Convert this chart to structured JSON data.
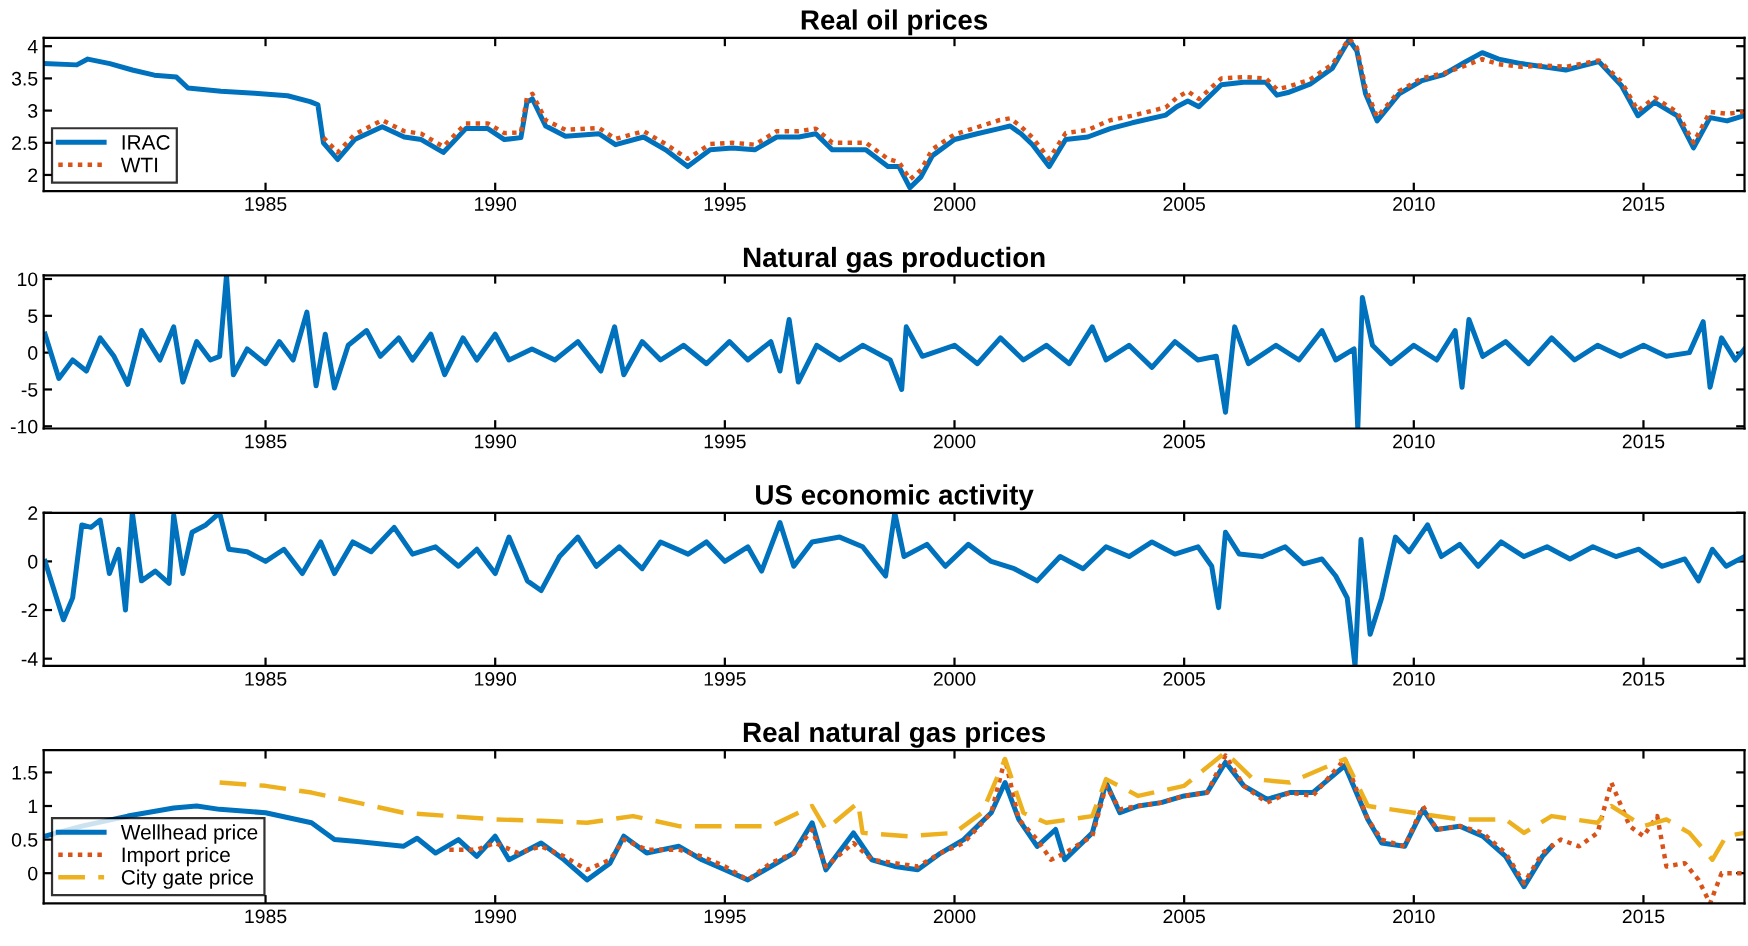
{
  "chart_data": [
    {
      "type": "line",
      "title": "Real oil prices",
      "xlim": [
        1980.17,
        2017.2
      ],
      "xticks": [
        1985,
        1990,
        1995,
        2000,
        2005,
        2010,
        2015
      ],
      "ylim": [
        1.75,
        4.13
      ],
      "yticks": [
        2,
        2.5,
        3,
        3.5,
        4
      ],
      "legend": "lower left",
      "series": [
        {
          "name": "IRAC",
          "color": "#0072bd",
          "line_style": "solid",
          "x": [
            1980.17,
            1980.89,
            1981.13,
            1981.61,
            1982.1,
            1982.58,
            1983.06,
            1983.31,
            1984.03,
            1984.76,
            1985.48,
            1985.97,
            1986.14,
            1986.26,
            1986.57,
            1986.94,
            1987.54,
            1988.02,
            1988.39,
            1988.87,
            1989.36,
            1989.84,
            1990.2,
            1990.56,
            1990.69,
            1990.81,
            1991.1,
            1991.53,
            1992.26,
            1992.62,
            1993.23,
            1993.71,
            1994.19,
            1994.68,
            1995.16,
            1995.65,
            1996.13,
            1996.61,
            1996.98,
            1997.34,
            1998.07,
            1998.55,
            1998.79,
            1999.03,
            1999.27,
            1999.52,
            2000.0,
            2000.49,
            2000.97,
            2001.21,
            2001.45,
            2001.7,
            2002.06,
            2002.42,
            2002.9,
            2003.39,
            2003.87,
            2004.6,
            2004.84,
            2005.08,
            2005.32,
            2005.81,
            2006.29,
            2006.78,
            2007.02,
            2007.26,
            2007.74,
            2008.23,
            2008.59,
            2008.76,
            2008.95,
            2009.2,
            2009.68,
            2010.16,
            2010.65,
            2011.13,
            2011.49,
            2011.85,
            2012.34,
            2012.82,
            2013.31,
            2014.03,
            2014.52,
            2014.88,
            2015.24,
            2015.73,
            2016.09,
            2016.45,
            2016.82,
            2017.18
          ],
          "values": [
            3.73,
            3.71,
            3.8,
            3.73,
            3.63,
            3.55,
            3.52,
            3.35,
            3.3,
            3.27,
            3.23,
            3.14,
            3.09,
            2.5,
            2.24,
            2.55,
            2.75,
            2.59,
            2.55,
            2.35,
            2.72,
            2.72,
            2.55,
            2.58,
            3.13,
            3.18,
            2.76,
            2.6,
            2.64,
            2.47,
            2.59,
            2.39,
            2.13,
            2.39,
            2.42,
            2.39,
            2.59,
            2.59,
            2.64,
            2.39,
            2.39,
            2.13,
            2.13,
            1.8,
            1.97,
            2.3,
            2.55,
            2.64,
            2.72,
            2.76,
            2.64,
            2.47,
            2.13,
            2.55,
            2.59,
            2.72,
            2.81,
            2.93,
            3.06,
            3.15,
            3.06,
            3.4,
            3.44,
            3.44,
            3.24,
            3.28,
            3.41,
            3.66,
            4.1,
            3.93,
            3.26,
            2.84,
            3.26,
            3.46,
            3.56,
            3.76,
            3.9,
            3.8,
            3.73,
            3.68,
            3.63,
            3.76,
            3.39,
            2.92,
            3.13,
            2.92,
            2.42,
            2.89,
            2.84,
            2.92
          ]
        },
        {
          "name": "WTI",
          "color": "#d95319",
          "line_style": "dotted",
          "x": [
            1986.26,
            1986.57,
            1986.94,
            1987.54,
            1988.02,
            1988.39,
            1988.87,
            1989.36,
            1989.84,
            1990.2,
            1990.56,
            1990.69,
            1990.81,
            1991.1,
            1991.53,
            1992.26,
            1992.62,
            1993.23,
            1993.71,
            1994.19,
            1994.68,
            1995.16,
            1995.65,
            1996.13,
            1996.61,
            1996.98,
            1997.34,
            1998.07,
            1998.55,
            1998.79,
            1999.03,
            1999.27,
            1999.52,
            2000.0,
            2000.49,
            2000.97,
            2001.21,
            2001.45,
            2001.7,
            2002.06,
            2002.42,
            2002.9,
            2003.39,
            2003.87,
            2004.6,
            2004.84,
            2005.08,
            2005.32,
            2005.81,
            2006.29,
            2006.78,
            2007.02,
            2007.26,
            2007.74,
            2008.23,
            2008.59,
            2008.76,
            2008.95,
            2009.2,
            2009.68,
            2010.16,
            2010.65,
            2011.13,
            2011.49,
            2011.85,
            2012.34,
            2012.82,
            2013.31,
            2014.03,
            2014.52,
            2014.88,
            2015.24,
            2015.73,
            2016.09,
            2016.45,
            2016.82,
            2017.18
          ],
          "values": [
            2.58,
            2.35,
            2.63,
            2.85,
            2.68,
            2.64,
            2.44,
            2.8,
            2.8,
            2.65,
            2.66,
            3.2,
            3.26,
            2.85,
            2.7,
            2.73,
            2.56,
            2.68,
            2.48,
            2.25,
            2.48,
            2.5,
            2.47,
            2.68,
            2.68,
            2.72,
            2.5,
            2.5,
            2.25,
            2.2,
            1.93,
            2.08,
            2.4,
            2.63,
            2.74,
            2.85,
            2.88,
            2.75,
            2.58,
            2.25,
            2.65,
            2.7,
            2.85,
            2.92,
            3.05,
            3.2,
            3.3,
            3.18,
            3.5,
            3.52,
            3.5,
            3.33,
            3.37,
            3.48,
            3.72,
            4.12,
            3.98,
            3.35,
            2.9,
            3.3,
            3.5,
            3.58,
            3.7,
            3.8,
            3.72,
            3.68,
            3.7,
            3.68,
            3.78,
            3.45,
            3.0,
            3.2,
            2.98,
            2.5,
            2.98,
            2.95,
            2.98
          ]
        }
      ]
    },
    {
      "type": "line",
      "title": "Natural gas production",
      "xlim": [
        1980.17,
        2017.2
      ],
      "xticks": [
        1985,
        1990,
        1995,
        2000,
        2005,
        2010,
        2015
      ],
      "ylim": [
        -10.3,
        10.5
      ],
      "yticks": [
        -10,
        -5,
        0,
        5,
        10
      ],
      "series": [
        {
          "color": "#0072bd",
          "line_style": "solid",
          "x": [
            1980.2,
            1980.5,
            1980.8,
            1981.1,
            1981.4,
            1981.7,
            1982.0,
            1982.3,
            1982.7,
            1983.0,
            1983.2,
            1983.5,
            1983.8,
            1984.0,
            1984.15,
            1984.3,
            1984.6,
            1985.0,
            1985.3,
            1985.6,
            1985.9,
            1986.1,
            1986.3,
            1986.5,
            1986.8,
            1987.2,
            1987.5,
            1987.9,
            1988.2,
            1988.6,
            1988.9,
            1989.3,
            1989.6,
            1990.0,
            1990.3,
            1990.8,
            1991.3,
            1991.8,
            1992.3,
            1992.6,
            1992.8,
            1993.2,
            1993.6,
            1994.1,
            1994.6,
            1995.1,
            1995.5,
            1996.0,
            1996.2,
            1996.4,
            1996.6,
            1997.0,
            1997.5,
            1998.0,
            1998.6,
            1998.85,
            1998.95,
            1999.3,
            2000.0,
            2000.5,
            2001.0,
            2001.5,
            2002.0,
            2002.5,
            2003.0,
            2003.3,
            2003.8,
            2004.3,
            2004.8,
            2005.3,
            2005.7,
            2005.9,
            2006.1,
            2006.4,
            2007.0,
            2007.5,
            2008.0,
            2008.3,
            2008.7,
            2008.78,
            2008.88,
            2009.1,
            2009.5,
            2010.0,
            2010.5,
            2010.9,
            2011.05,
            2011.2,
            2011.5,
            2012.0,
            2012.5,
            2013.0,
            2013.5,
            2014.0,
            2014.5,
            2015.0,
            2015.5,
            2016.0,
            2016.3,
            2016.45,
            2016.7,
            2017.0,
            2017.2
          ],
          "values": [
            2.5,
            -3.5,
            -1,
            -2.5,
            2,
            -0.5,
            -4.3,
            3,
            -1,
            3.5,
            -4,
            1.5,
            -1,
            -0.5,
            10.5,
            -3,
            0.5,
            -1.5,
            1.5,
            -1,
            5.5,
            -4.5,
            2.5,
            -4.8,
            1,
            3,
            -0.5,
            2,
            -1,
            2.5,
            -3,
            2,
            -1,
            2.5,
            -1,
            0.5,
            -1,
            1.5,
            -2.5,
            3.5,
            -3,
            1.5,
            -1,
            1,
            -1.5,
            1.5,
            -1,
            1.5,
            -2.5,
            4.5,
            -4,
            1,
            -1,
            1,
            -1,
            -5,
            3.5,
            -0.5,
            1,
            -1.5,
            2,
            -1,
            1,
            -1.5,
            3.5,
            -1,
            1,
            -2,
            1.5,
            -1,
            -0.5,
            -8.1,
            3.5,
            -1.5,
            1,
            -1,
            3,
            -1,
            0.5,
            -10.3,
            7.5,
            1,
            -1.5,
            1,
            -1,
            3,
            -4.7,
            4.5,
            -0.5,
            1.5,
            -1.5,
            2,
            -1,
            1,
            -0.5,
            1,
            -0.5,
            0,
            4.2,
            -4.7,
            2,
            -1,
            0.5
          ]
        }
      ]
    },
    {
      "type": "line",
      "title": "US economic activity",
      "xlim": [
        1980.17,
        2017.2
      ],
      "xticks": [
        1985,
        1990,
        1995,
        2000,
        2005,
        2010,
        2015
      ],
      "ylim": [
        -4.3,
        2
      ],
      "yticks": [
        -4,
        -2,
        0,
        2
      ],
      "series": [
        {
          "color": "#0072bd",
          "line_style": "solid",
          "x": [
            1980.2,
            1980.45,
            1980.6,
            1980.8,
            1981.0,
            1981.2,
            1981.4,
            1981.6,
            1981.8,
            1981.95,
            1982.1,
            1982.3,
            1982.6,
            1982.9,
            1983.0,
            1983.2,
            1983.4,
            1983.7,
            1984.0,
            1984.2,
            1984.6,
            1985.0,
            1985.4,
            1985.8,
            1986.2,
            1986.5,
            1986.9,
            1987.3,
            1987.8,
            1988.2,
            1988.7,
            1989.2,
            1989.6,
            1990.0,
            1990.3,
            1990.7,
            1991.0,
            1991.4,
            1991.8,
            1992.2,
            1992.7,
            1993.2,
            1993.6,
            1994.2,
            1994.6,
            1995.0,
            1995.5,
            1995.8,
            1996.2,
            1996.5,
            1996.9,
            1997.5,
            1998.0,
            1998.5,
            1998.7,
            1998.9,
            1999.4,
            1999.8,
            2000.3,
            2000.8,
            2001.3,
            2001.8,
            2002.3,
            2002.8,
            2003.3,
            2003.8,
            2004.3,
            2004.8,
            2005.3,
            2005.6,
            2005.75,
            2005.9,
            2006.2,
            2006.7,
            2007.2,
            2007.6,
            2008.0,
            2008.3,
            2008.55,
            2008.72,
            2008.85,
            2009.05,
            2009.3,
            2009.6,
            2009.9,
            2010.3,
            2010.6,
            2011.0,
            2011.4,
            2011.9,
            2012.4,
            2012.9,
            2013.4,
            2013.9,
            2014.4,
            2014.9,
            2015.4,
            2015.9,
            2016.2,
            2016.5,
            2016.8,
            2017.2
          ],
          "values": [
            0,
            -1.5,
            -2.4,
            -1.5,
            1.5,
            1.4,
            1.7,
            -0.5,
            0.5,
            -2,
            2,
            -0.8,
            -0.4,
            -0.9,
            1.9,
            -0.5,
            1.2,
            1.5,
            2,
            0.5,
            0.4,
            0,
            0.5,
            -0.5,
            0.8,
            -0.5,
            0.8,
            0.4,
            1.4,
            0.3,
            0.6,
            -0.2,
            0.5,
            -0.5,
            1,
            -0.8,
            -1.2,
            0.2,
            1,
            -0.2,
            0.6,
            -0.3,
            0.8,
            0.3,
            0.8,
            0,
            0.6,
            -0.4,
            1.6,
            -0.2,
            0.8,
            1,
            0.6,
            -0.6,
            2,
            0.2,
            0.7,
            -0.2,
            0.7,
            0,
            -0.3,
            -0.8,
            0.2,
            -0.3,
            0.6,
            0.2,
            0.8,
            0.3,
            0.6,
            -0.2,
            -1.9,
            1.2,
            0.3,
            0.2,
            0.6,
            -0.1,
            0.1,
            -0.6,
            -1.5,
            -4.3,
            0.9,
            -3,
            -1.5,
            1,
            0.4,
            1.5,
            0.2,
            0.7,
            -0.2,
            0.8,
            0.2,
            0.6,
            0.1,
            0.6,
            0.2,
            0.5,
            -0.2,
            0.1,
            -0.8,
            0.5,
            -0.2,
            0.2
          ]
        }
      ]
    },
    {
      "type": "line",
      "title": "Real natural gas prices",
      "xlim": [
        1980.17,
        2017.2
      ],
      "xticks": [
        1985,
        1990,
        1995,
        2000,
        2005,
        2010,
        2015
      ],
      "ylim": [
        -0.45,
        1.83
      ],
      "yticks": [
        0,
        0.5,
        1,
        1.5
      ],
      "legend": "lower left",
      "series": [
        {
          "name": "Wellhead price",
          "color": "#0072bd",
          "line_style": "solid",
          "x": [
            1980.2,
            1981,
            1982,
            1983,
            1983.5,
            1984,
            1985,
            1986,
            1986.5,
            1987,
            1988,
            1988.3,
            1988.7,
            1989.2,
            1989.6,
            1990,
            1990.3,
            1991,
            1991.5,
            1992,
            1992.5,
            1992.8,
            1993.3,
            1994,
            1994.5,
            1995,
            1995.5,
            1996,
            1996.5,
            1996.9,
            1997.2,
            1997.8,
            1998.2,
            1998.7,
            1999.2,
            1999.7,
            2000.2,
            2000.8,
            2001.1,
            2001.4,
            2001.8,
            2002.2,
            2002.4,
            2003,
            2003.3,
            2003.6,
            2004,
            2004.5,
            2005,
            2005.5,
            2005.9,
            2006.3,
            2006.8,
            2007.3,
            2007.8,
            2008.5,
            2009,
            2009.3,
            2009.8,
            2010.2,
            2010.5,
            2011,
            2011.5,
            2012,
            2012.4,
            2012.8,
            2013.0
          ],
          "values": [
            0.55,
            0.7,
            0.85,
            0.97,
            1.0,
            0.95,
            0.9,
            0.75,
            0.5,
            0.47,
            0.4,
            0.52,
            0.3,
            0.5,
            0.25,
            0.55,
            0.2,
            0.45,
            0.2,
            -0.1,
            0.15,
            0.55,
            0.3,
            0.4,
            0.2,
            0.05,
            -0.1,
            0.1,
            0.3,
            0.75,
            0.05,
            0.6,
            0.2,
            0.1,
            0.05,
            0.3,
            0.5,
            0.9,
            1.35,
            0.8,
            0.4,
            0.65,
            0.2,
            0.6,
            1.35,
            0.9,
            1.0,
            1.05,
            1.15,
            1.2,
            1.65,
            1.3,
            1.1,
            1.2,
            1.2,
            1.6,
            0.8,
            0.45,
            0.4,
            0.95,
            0.65,
            0.7,
            0.55,
            0.25,
            -0.2,
            0.25,
            0.4
          ]
        },
        {
          "name": "Import price",
          "color": "#d95319",
          "line_style": "dotted",
          "x": [
            1989.0,
            1989.6,
            1990.0,
            1990.5,
            1991.0,
            1991.5,
            1992.0,
            1992.5,
            1992.8,
            1993.3,
            1994.0,
            1994.5,
            1995.0,
            1995.5,
            1996.0,
            1996.5,
            1996.9,
            1997.2,
            1997.8,
            1998.2,
            1998.7,
            1999.2,
            1999.7,
            2000.2,
            2000.8,
            2001.1,
            2001.4,
            2001.8,
            2002.1,
            2002.4,
            2003.0,
            2003.3,
            2003.6,
            2004.0,
            2004.5,
            2005.0,
            2005.5,
            2005.9,
            2006.3,
            2006.8,
            2007.3,
            2007.8,
            2008.5,
            2009.0,
            2009.3,
            2009.8,
            2010.2,
            2010.5,
            2011.0,
            2011.5,
            2012.0,
            2012.4,
            2012.8,
            2013.2,
            2013.6,
            2014.0,
            2014.3,
            2014.7,
            2015.0,
            2015.3,
            2015.5,
            2015.9,
            2016.2,
            2016.45,
            2016.7,
            2017.2
          ],
          "values": [
            0.35,
            0.35,
            0.45,
            0.3,
            0.4,
            0.25,
            0.05,
            0.2,
            0.5,
            0.35,
            0.35,
            0.25,
            0.1,
            -0.1,
            0.15,
            0.3,
            0.65,
            0.1,
            0.45,
            0.2,
            0.15,
            0.1,
            0.3,
            0.45,
            0.9,
            1.7,
            0.8,
            0.5,
            0.2,
            0.3,
            0.55,
            1.3,
            0.95,
            1.0,
            1.05,
            1.15,
            1.2,
            1.75,
            1.3,
            1.05,
            1.2,
            1.15,
            1.7,
            0.8,
            0.5,
            0.4,
            1.0,
            0.65,
            0.7,
            0.6,
            0.3,
            -0.15,
            0.3,
            0.5,
            0.4,
            0.6,
            1.35,
            0.7,
            0.55,
            0.85,
            0.1,
            0.15,
            -0.1,
            -0.45,
            0.0,
            0.0
          ]
        },
        {
          "name": "City gate price",
          "color": "#edb120",
          "line_style": "dashed",
          "x": [
            1984,
            1985,
            1986,
            1987,
            1988,
            1989,
            1990,
            1991,
            1992,
            1993,
            1994,
            1995,
            1996,
            1996.9,
            1997.2,
            1997.9,
            1998,
            1999,
            2000,
            2000.6,
            2001.1,
            2001.5,
            2002,
            2003,
            2003.3,
            2004,
            2005,
            2005.9,
            2006.5,
            2007.3,
            2008.5,
            2009,
            2010,
            2011,
            2012,
            2012.4,
            2013,
            2014,
            2014.3,
            2015,
            2015.5,
            2016,
            2016.5,
            2016.8,
            2017.2
          ],
          "values": [
            1.35,
            1.3,
            1.2,
            1.05,
            0.9,
            0.85,
            0.8,
            0.78,
            0.75,
            0.85,
            0.7,
            0.7,
            0.7,
            1.0,
            0.65,
            1.05,
            0.6,
            0.55,
            0.6,
            0.9,
            1.7,
            0.9,
            0.75,
            0.85,
            1.4,
            1.15,
            1.3,
            1.8,
            1.4,
            1.35,
            1.7,
            1.0,
            0.9,
            0.8,
            0.8,
            0.6,
            0.85,
            0.75,
            1.0,
            0.7,
            0.8,
            0.6,
            0.2,
            0.55,
            0.6
          ]
        }
      ]
    }
  ]
}
